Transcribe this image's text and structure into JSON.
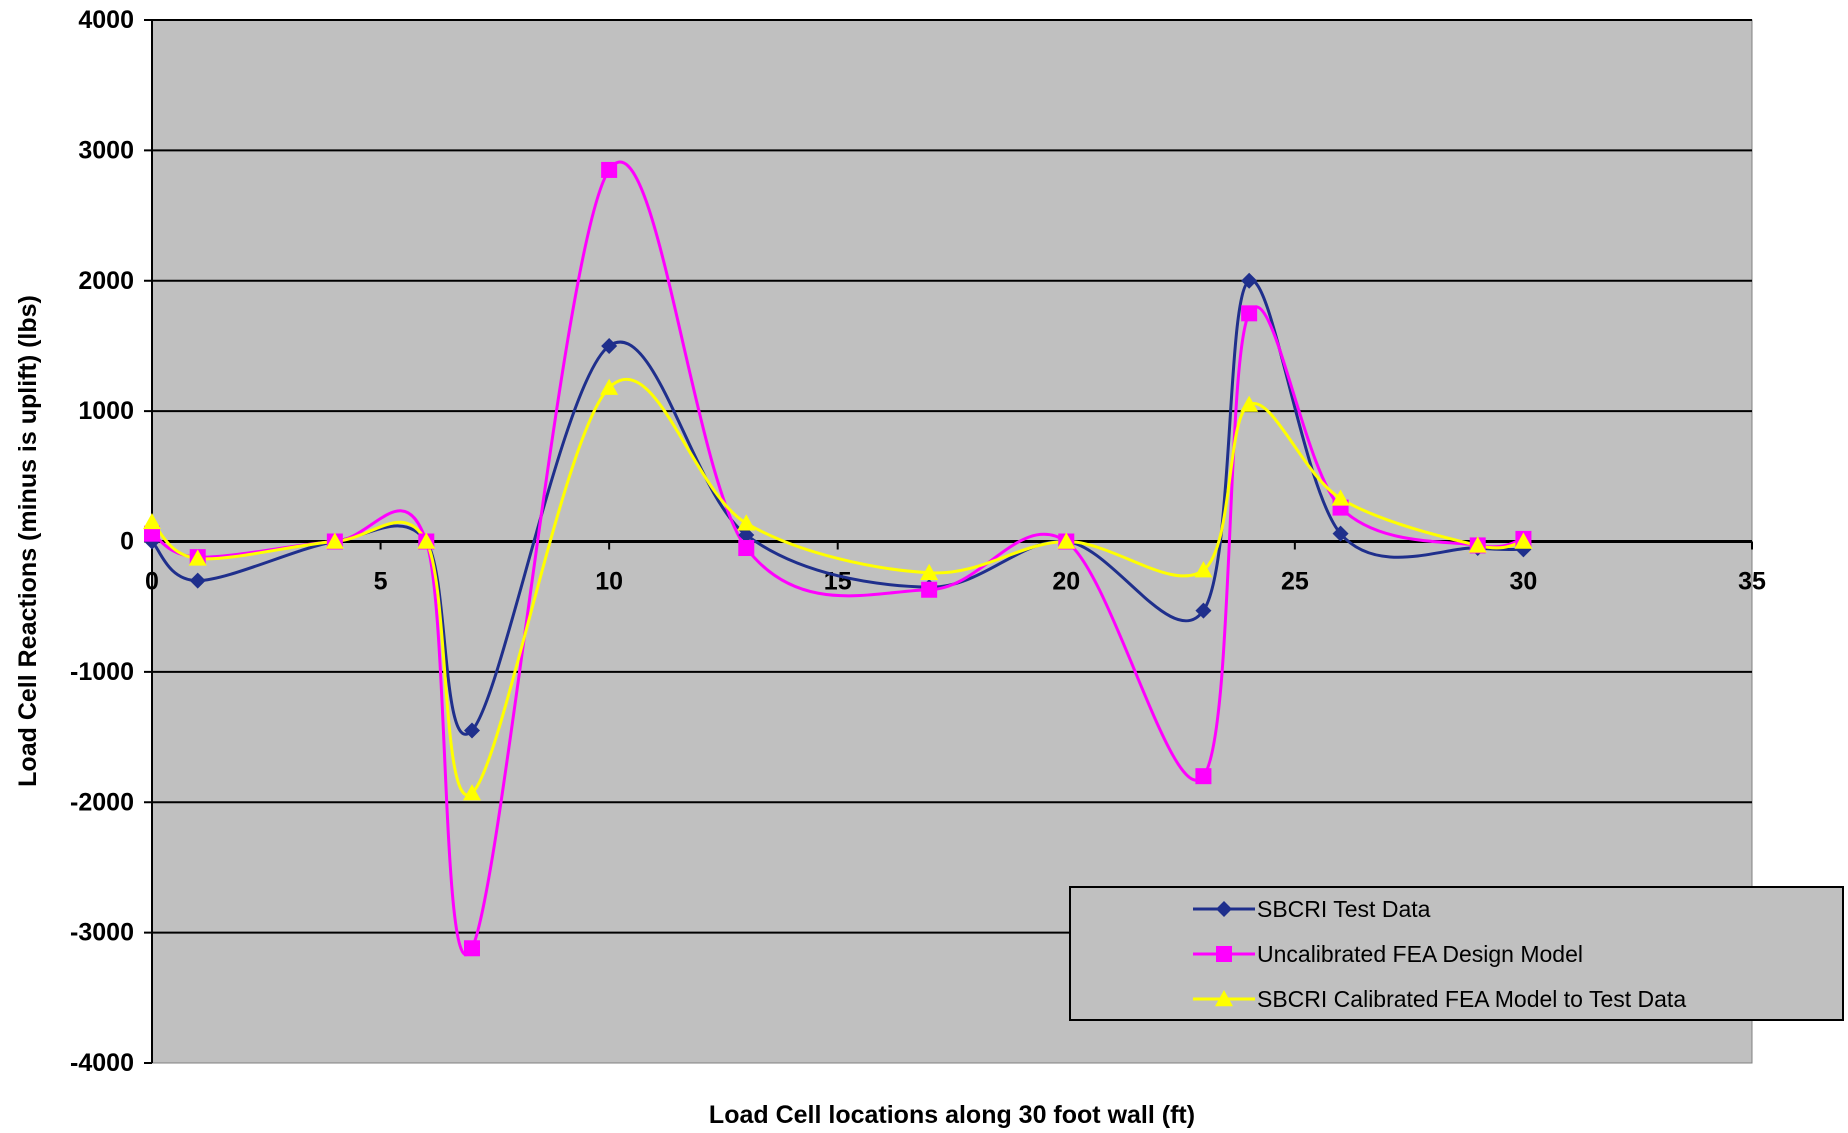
{
  "chart_data": {
    "type": "line",
    "title": "",
    "xlabel": "Load Cell locations along 30 foot wall (ft)",
    "ylabel": "Load Cell Reactions (minus is uplift) (lbs)",
    "xlim": [
      0,
      35
    ],
    "ylim": [
      -4000,
      4000
    ],
    "x_ticks": [
      0,
      5,
      10,
      15,
      20,
      25,
      30,
      35
    ],
    "y_ticks": [
      4000,
      3000,
      2000,
      1000,
      0,
      -1000,
      -2000,
      -3000,
      -4000
    ],
    "grid": "horizontal",
    "plot_background": "#c0c0c0",
    "legend_position": "bottom-right",
    "series": [
      {
        "name": "SBCRI Test Data",
        "color": "#1f2f8c",
        "marker": "diamond",
        "x": [
          0,
          1,
          4,
          6,
          7,
          10,
          13,
          17,
          20,
          23,
          24,
          26,
          29,
          30
        ],
        "y": [
          0,
          -300,
          0,
          0,
          -1450,
          1500,
          50,
          -350,
          0,
          -530,
          2000,
          60,
          -50,
          -60
        ]
      },
      {
        "name": "Uncalibrated FEA Design Model",
        "color": "#ff00ff",
        "marker": "square",
        "x": [
          0,
          1,
          4,
          6,
          7,
          10,
          13,
          17,
          20,
          23,
          24,
          26,
          29,
          30
        ],
        "y": [
          60,
          -120,
          0,
          0,
          -3120,
          2850,
          -50,
          -370,
          0,
          -1800,
          1750,
          260,
          -30,
          20
        ]
      },
      {
        "name": "SBCRI Calibrated FEA Model to Test Data",
        "color": "#ffff00",
        "marker": "triangle",
        "x": [
          0,
          1,
          4,
          6,
          7,
          10,
          13,
          17,
          20,
          23,
          24,
          26,
          29,
          30
        ],
        "y": [
          150,
          -130,
          0,
          0,
          -1930,
          1180,
          140,
          -240,
          0,
          -220,
          1050,
          330,
          -30,
          0
        ]
      }
    ]
  }
}
